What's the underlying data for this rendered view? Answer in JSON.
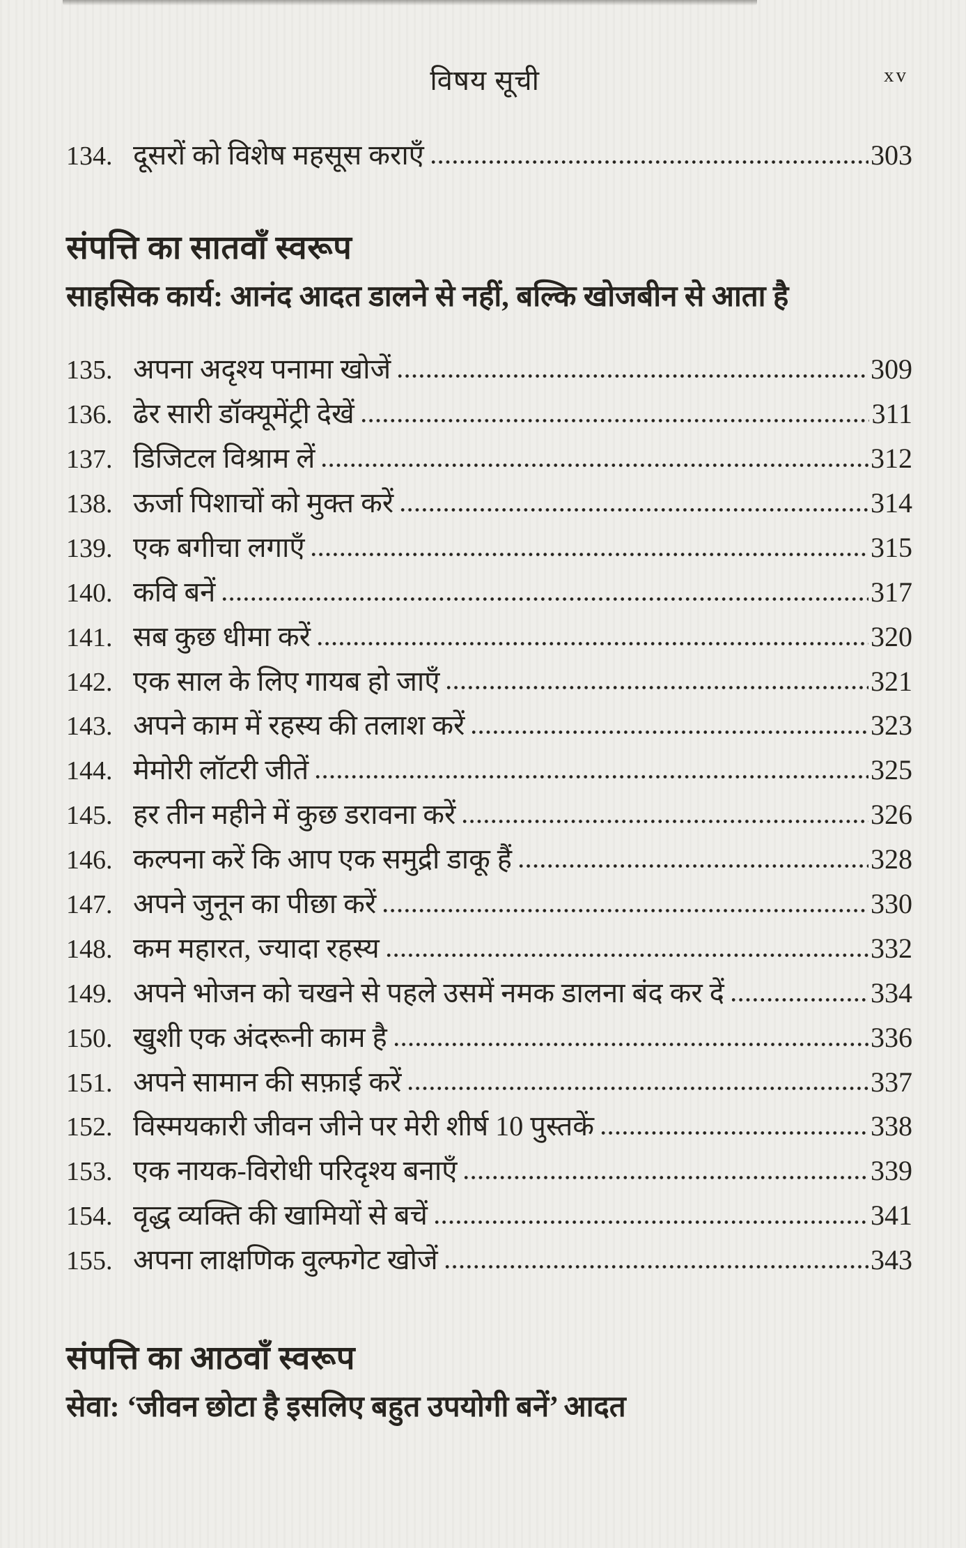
{
  "page": {
    "header_title": "विषय सूची",
    "folio": "xv",
    "colors": {
      "paper": "#efeeea",
      "ink": "#26231e"
    }
  },
  "toc": {
    "pre_section_items": [
      {
        "num": "134.",
        "title": "दूसरों को विशेष महसूस कराएँ",
        "page": "303"
      }
    ],
    "sections": [
      {
        "heading": "संपत्ति का सातवाँ स्वरूप",
        "subtitle": "साहसिक कार्य: आनंद आदत डालने से नहीं, बल्कि खोजबीन से आता है",
        "items": [
          {
            "num": "135.",
            "title": "अपना अदृश्य पनामा खोजें",
            "page": "309"
          },
          {
            "num": "136.",
            "title": "ढेर सारी डॉक्यूमेंट्री देखें",
            "page": "311"
          },
          {
            "num": "137.",
            "title": "डिजिटल विश्राम लें",
            "page": "312"
          },
          {
            "num": "138.",
            "title": "ऊर्जा पिशाचों को मुक्त करें",
            "page": "314"
          },
          {
            "num": "139.",
            "title": "एक बगीचा लगाएँ",
            "page": "315"
          },
          {
            "num": "140.",
            "title": "कवि बनें",
            "page": "317"
          },
          {
            "num": "141.",
            "title": "सब कुछ धीमा करें",
            "page": "320"
          },
          {
            "num": "142.",
            "title": "एक साल के लिए गायब हो जाएँ",
            "page": "321"
          },
          {
            "num": "143.",
            "title": "अपने काम में रहस्य की तलाश करें",
            "page": "323"
          },
          {
            "num": "144.",
            "title": "मेमोरी लॉटरी जीतें",
            "page": "325"
          },
          {
            "num": "145.",
            "title": "हर तीन महीने में कुछ डरावना करें",
            "page": "326"
          },
          {
            "num": "146.",
            "title": "कल्पना करें कि आप एक समुद्री डाकू हैं",
            "page": "328"
          },
          {
            "num": "147.",
            "title": "अपने जुनून का पीछा करें",
            "page": "330"
          },
          {
            "num": "148.",
            "title": "कम महारत, ज्यादा रहस्य",
            "page": "332"
          },
          {
            "num": "149.",
            "title": "अपने भोजन को चखने से पहले उसमें नमक डालना बंद कर दें",
            "page": "334"
          },
          {
            "num": "150.",
            "title": "खुशी एक अंदरूनी काम है",
            "page": "336"
          },
          {
            "num": "151.",
            "title": "अपने सामान की सफ़ाई करें",
            "page": "337"
          },
          {
            "num": "152.",
            "title": "विस्मयकारी जीवन जीने पर मेरी शीर्ष 10 पुस्तकें",
            "page": "338"
          },
          {
            "num": "153.",
            "title": "एक नायक-विरोधी परिदृश्य बनाएँ",
            "page": "339"
          },
          {
            "num": "154.",
            "title": "वृद्ध व्यक्ति की खामियों से बचें",
            "page": "341"
          },
          {
            "num": "155.",
            "title": "अपना लाक्षणिक वुल्फगेट खोजें",
            "page": "343"
          }
        ]
      },
      {
        "heading": "संपत्ति का आठवाँ स्वरूप",
        "subtitle": "सेवा: ‘जीवन छोटा है इसलिए बहुत उपयोगी बनें’ आदत",
        "items": []
      }
    ]
  }
}
